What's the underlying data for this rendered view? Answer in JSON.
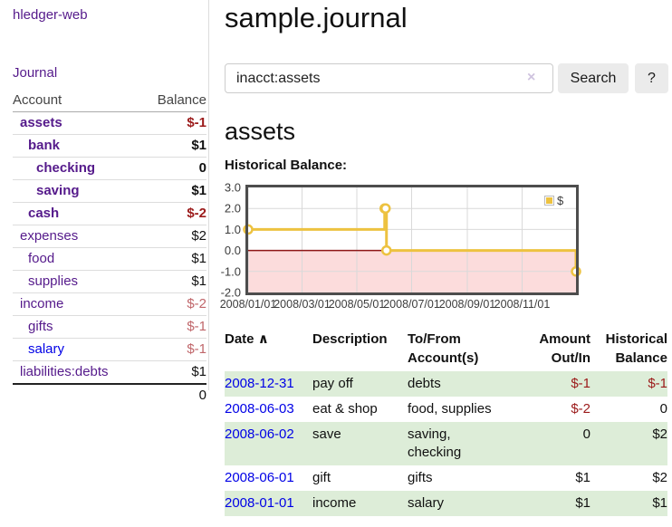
{
  "app": {
    "brand": "hledger-web",
    "nav_journal": "Journal"
  },
  "sidebar": {
    "account_header": "Account",
    "balance_header": "Balance",
    "rows": [
      {
        "name": "assets",
        "balance": "$-1"
      },
      {
        "name": "bank",
        "balance": "$1"
      },
      {
        "name": "checking",
        "balance": "0"
      },
      {
        "name": "saving",
        "balance": "$1"
      },
      {
        "name": "cash",
        "balance": "$-2"
      },
      {
        "name": "expenses",
        "balance": "$2"
      },
      {
        "name": "food",
        "balance": "$1"
      },
      {
        "name": "supplies",
        "balance": "$1"
      },
      {
        "name": "income",
        "balance": "$-2"
      },
      {
        "name": "gifts",
        "balance": "$-1"
      },
      {
        "name": "salary",
        "balance": "$-1"
      },
      {
        "name": "liabilities:debts",
        "balance": "$1"
      }
    ],
    "total": "0"
  },
  "main": {
    "title": "sample.journal",
    "search": {
      "value": "inacct:assets",
      "clear_icon": "×",
      "button": "Search",
      "help": "?"
    },
    "heading": "assets",
    "chart_title": "Historical Balance:"
  },
  "chart_data": {
    "type": "line",
    "step": true,
    "title": "Historical Balance",
    "legend": {
      "label": "$",
      "position": "top-right"
    },
    "points": [
      {
        "x": "2008-01-01",
        "y": 1
      },
      {
        "x": "2008-06-01",
        "y": 2
      },
      {
        "x": "2008-06-02",
        "y": 2
      },
      {
        "x": "2008-06-03",
        "y": 0
      },
      {
        "x": "2008-12-31",
        "y": -1
      }
    ],
    "xlim": [
      "2008-01-01",
      "2008-12-31"
    ],
    "ylim": [
      -2,
      3
    ],
    "x_ticks": [
      {
        "x": "2008-01-01",
        "label": "2008/01/01"
      },
      {
        "x": "2008-03-01",
        "label": "2008/03/01"
      },
      {
        "x": "2008-05-01",
        "label": "2008/05/01"
      },
      {
        "x": "2008-07-01",
        "label": "2008/07/01"
      },
      {
        "x": "2008-09-01",
        "label": "2008/09/01"
      },
      {
        "x": "2008-11-01",
        "label": "2008/11/01"
      }
    ],
    "y_ticks": [
      {
        "y": 3,
        "label": "3.0"
      },
      {
        "y": 2,
        "label": "2.0"
      },
      {
        "y": 1,
        "label": "1.0"
      },
      {
        "y": 0,
        "label": "0.0"
      },
      {
        "y": -1,
        "label": "-1.0"
      },
      {
        "y": -2,
        "label": "-2.0"
      }
    ],
    "grid": true,
    "colors": {
      "series": "#edc240",
      "marker_fill": "#ffffff",
      "negative_fill": "#fcdcdc",
      "zero_line": "#8e1717",
      "gridline": "#d9d9d9",
      "plot_border": "#4d4d4d",
      "axis_text": "#3c3c3c"
    }
  },
  "register": {
    "headers": {
      "date": "Date",
      "sort_icon": "∧",
      "description": "Description",
      "accounts": "To/From\nAccount(s)",
      "amount": "Amount\nOut/In",
      "balance": "Historical\nBalance"
    },
    "rows": [
      {
        "date": "2008-12-31",
        "description": "pay off",
        "accounts": "debts",
        "amount": "$-1",
        "balance": "$-1"
      },
      {
        "date": "2008-06-03",
        "description": "eat & shop",
        "accounts": "food, supplies",
        "amount": "$-2",
        "balance": "0"
      },
      {
        "date": "2008-06-02",
        "description": "save",
        "accounts": "saving,\nchecking",
        "amount": "0",
        "balance": "$2"
      },
      {
        "date": "2008-06-01",
        "description": "gift",
        "accounts": "gifts",
        "amount": "$1",
        "balance": "$2"
      },
      {
        "date": "2008-01-01",
        "description": "income",
        "accounts": "salary",
        "amount": "$1",
        "balance": "$1"
      }
    ]
  }
}
